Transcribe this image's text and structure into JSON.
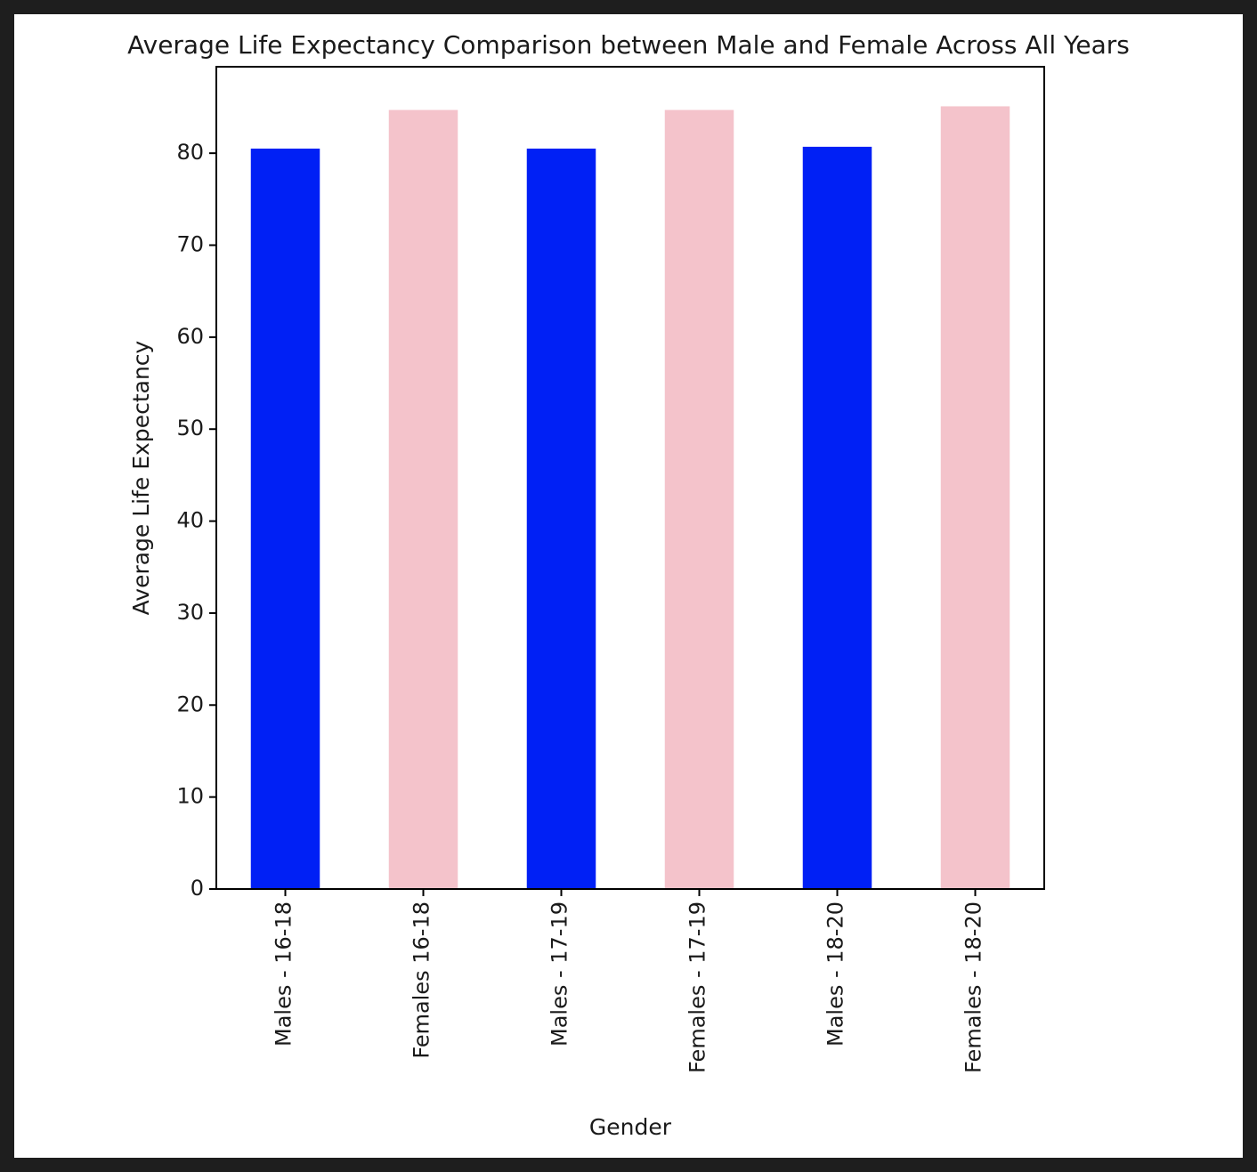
{
  "chart_data": {
    "type": "bar",
    "title": "Average Life Expectancy Comparison between Male and Female Across All Years",
    "xlabel": "Gender",
    "ylabel": "Average Life Expectancy",
    "categories": [
      "Males - 16-18",
      "Females 16-18",
      "Males - 17-19",
      "Females - 17-19",
      "Males - 18-20",
      "Females - 18-20"
    ],
    "values": [
      80.5,
      84.7,
      80.5,
      84.7,
      80.7,
      85.1
    ],
    "colors": [
      "#0020f5",
      "#f4c3cb",
      "#0020f5",
      "#f4c3cb",
      "#0020f5",
      "#f4c3cb"
    ],
    "yticks": [
      0,
      10,
      20,
      30,
      40,
      50,
      60,
      70,
      80
    ],
    "ylim": [
      0,
      89.4
    ],
    "grid": false,
    "legend": false
  }
}
